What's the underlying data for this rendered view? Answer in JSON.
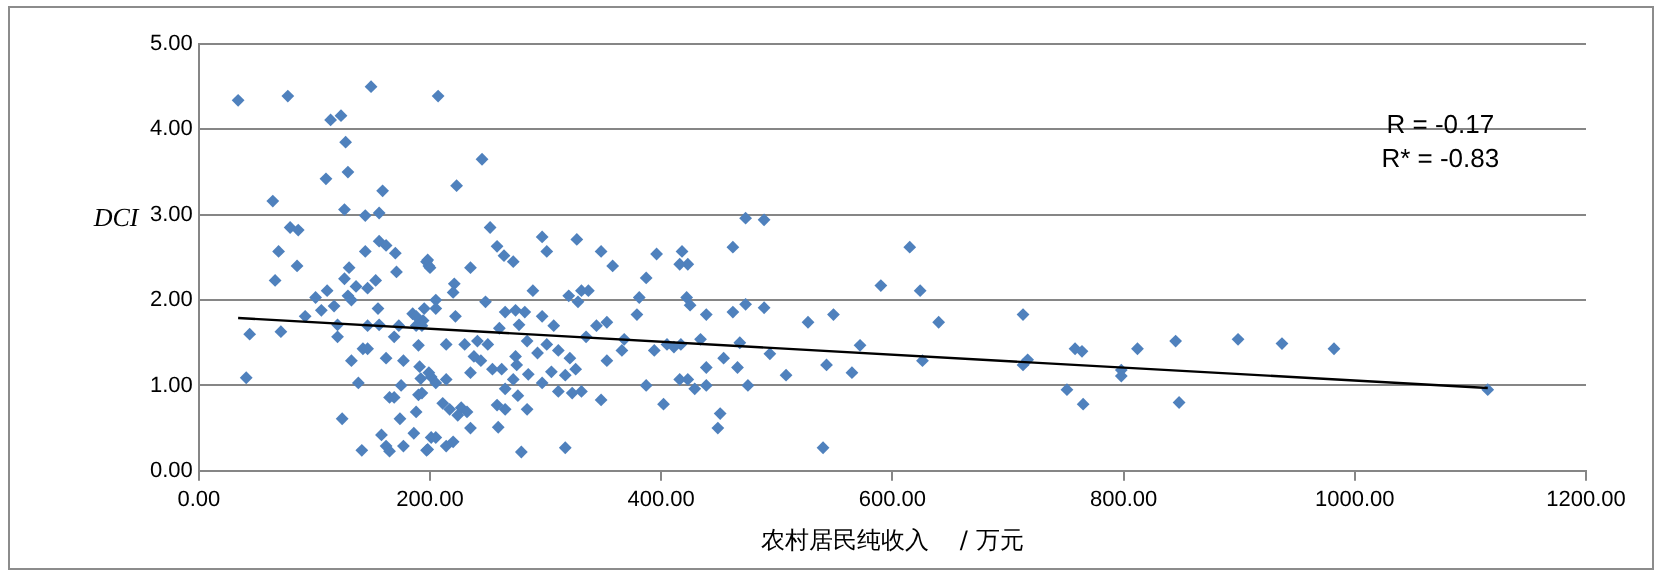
{
  "chart_data": {
    "type": "scatter",
    "xlabel": "农村居民纯收入    / 万元",
    "ylabel": "DCI",
    "xlim": [
      0,
      1200
    ],
    "xticks": [
      {
        "value": 0,
        "label": "0.00"
      },
      {
        "value": 200,
        "label": "200.00"
      },
      {
        "value": 400,
        "label": "400.00"
      },
      {
        "value": 600,
        "label": "600.00"
      },
      {
        "value": 800,
        "label": "800.00"
      },
      {
        "value": 1000,
        "label": "1000.00"
      },
      {
        "value": 1200,
        "label": "1200.00"
      }
    ],
    "ylim": [
      0,
      5
    ],
    "yticks": [
      {
        "value": 0,
        "label": "0.00"
      },
      {
        "value": 1,
        "label": "1.00"
      },
      {
        "value": 2,
        "label": "2.00"
      },
      {
        "value": 3,
        "label": "3.00"
      },
      {
        "value": 4,
        "label": "4.00"
      },
      {
        "value": 5,
        "label": "5.00"
      }
    ],
    "grid": "y",
    "legend": false,
    "annotations": [
      "R = -0.17",
      "R* = -0.83"
    ],
    "series": [
      {
        "marker": "diamond",
        "color": "#4f81bd",
        "x": [
          34,
          77,
          149,
          114,
          123,
          127,
          110,
          129,
          64,
          79,
          86,
          69,
          85,
          66,
          126,
          144,
          156,
          159,
          144,
          156,
          162,
          170,
          171,
          153,
          130,
          126,
          136,
          146,
          101,
          111,
          117,
          129,
          132,
          106,
          92,
          155,
          185,
          195,
          197,
          199,
          44,
          71,
          120,
          120,
          146,
          156,
          173,
          188,
          194,
          169,
          190,
          41,
          132,
          142,
          146,
          162,
          177,
          138,
          191,
          192,
          201,
          175,
          165,
          169,
          190,
          188,
          174,
          124,
          158,
          162,
          165,
          177,
          141,
          186,
          197,
          201,
          207,
          245,
          223,
          252,
          258,
          264,
          272,
          297,
          301,
          327,
          348,
          358,
          396,
          387,
          381,
          379,
          198,
          200,
          221,
          235,
          220,
          205,
          205,
          222,
          248,
          289,
          320,
          331,
          337,
          328,
          265,
          274,
          282,
          260,
          277,
          297,
          307,
          344,
          353,
          188,
          193,
          214,
          230,
          241,
          250,
          238,
          254,
          235,
          244,
          274,
          284,
          293,
          301,
          311,
          321,
          335,
          368,
          366,
          353,
          326,
          317,
          305,
          297,
          285,
          272,
          265,
          276,
          275,
          262,
          199,
          205,
          214,
          193,
          211,
          217,
          227,
          232,
          224,
          235,
          258,
          259,
          265,
          284,
          311,
          323,
          331,
          348,
          387,
          402,
          198,
          205,
          214,
          220,
          279,
          317,
          394,
          405,
          417,
          423,
          423,
          411,
          416,
          418,
          422,
          425,
          416,
          429,
          434,
          439,
          439,
          439,
          451,
          449,
          454,
          462,
          462,
          466,
          468,
          473,
          473,
          475,
          489,
          489,
          494,
          508,
          527,
          540,
          543,
          549,
          565,
          572,
          590,
          615,
          624,
          626,
          640,
          713,
          713,
          717,
          751,
          758,
          764,
          765,
          798,
          798,
          812,
          845,
          848,
          899,
          937,
          982,
          1115
        ],
        "values": [
          4.34,
          4.39,
          4.5,
          4.11,
          4.16,
          3.85,
          3.42,
          3.5,
          3.16,
          2.85,
          2.82,
          2.57,
          2.4,
          2.23,
          3.06,
          2.99,
          3.02,
          3.28,
          2.57,
          2.69,
          2.64,
          2.55,
          2.33,
          2.23,
          2.38,
          2.25,
          2.16,
          2.14,
          2.03,
          2.11,
          1.93,
          2.05,
          2.0,
          1.88,
          1.81,
          1.9,
          1.84,
          1.9,
          2.45,
          2.4,
          1.6,
          1.63,
          1.71,
          1.57,
          1.7,
          1.71,
          1.7,
          1.7,
          1.76,
          1.57,
          1.47,
          1.09,
          1.29,
          1.43,
          1.43,
          1.32,
          1.29,
          1.03,
          1.22,
          1.08,
          1.1,
          1.0,
          0.86,
          0.86,
          0.89,
          0.69,
          0.61,
          0.61,
          0.42,
          0.29,
          0.23,
          0.29,
          0.24,
          0.44,
          0.24,
          0.39,
          4.39,
          3.65,
          3.34,
          2.85,
          2.63,
          2.52,
          2.45,
          2.74,
          2.57,
          2.71,
          2.57,
          2.4,
          2.54,
          2.26,
          2.03,
          1.83,
          2.47,
          2.38,
          2.19,
          2.38,
          2.09,
          2.0,
          1.9,
          1.81,
          1.98,
          2.11,
          2.05,
          2.11,
          2.11,
          1.98,
          1.86,
          1.88,
          1.86,
          1.67,
          1.71,
          1.81,
          1.7,
          1.7,
          1.74,
          1.81,
          1.7,
          1.48,
          1.48,
          1.52,
          1.48,
          1.34,
          1.19,
          1.15,
          1.29,
          1.34,
          1.52,
          1.38,
          1.48,
          1.41,
          1.32,
          1.57,
          1.54,
          1.41,
          1.29,
          1.19,
          1.12,
          1.16,
          1.03,
          1.13,
          1.07,
          0.96,
          0.88,
          1.24,
          1.19,
          1.15,
          1.03,
          1.07,
          0.91,
          0.79,
          0.72,
          0.74,
          0.69,
          0.65,
          0.5,
          0.77,
          0.51,
          0.72,
          0.72,
          0.93,
          0.91,
          0.93,
          0.83,
          1.0,
          0.78,
          0.25,
          0.39,
          0.29,
          0.34,
          0.22,
          0.27,
          1.41,
          1.48,
          1.48,
          2.42,
          1.07,
          1.45,
          2.42,
          2.57,
          2.03,
          1.94,
          1.07,
          0.96,
          1.54,
          1.83,
          1.21,
          1.0,
          0.67,
          0.5,
          1.32,
          2.62,
          1.86,
          1.21,
          1.5,
          2.96,
          1.95,
          1.0,
          2.94,
          1.91,
          1.37,
          1.12,
          1.74,
          0.27,
          1.24,
          1.83,
          1.15,
          1.47,
          2.17,
          2.62,
          2.11,
          1.29,
          1.74,
          1.83,
          1.24,
          1.3,
          0.95,
          1.43,
          1.4,
          0.78,
          1.18,
          1.11,
          1.43,
          1.52,
          0.8,
          1.54,
          1.49,
          1.43,
          0.95
        ]
      },
      {
        "type": "line",
        "color": "#000000",
        "x": [
          34,
          1115
        ],
        "values": [
          1.79,
          0.97
        ]
      }
    ]
  }
}
